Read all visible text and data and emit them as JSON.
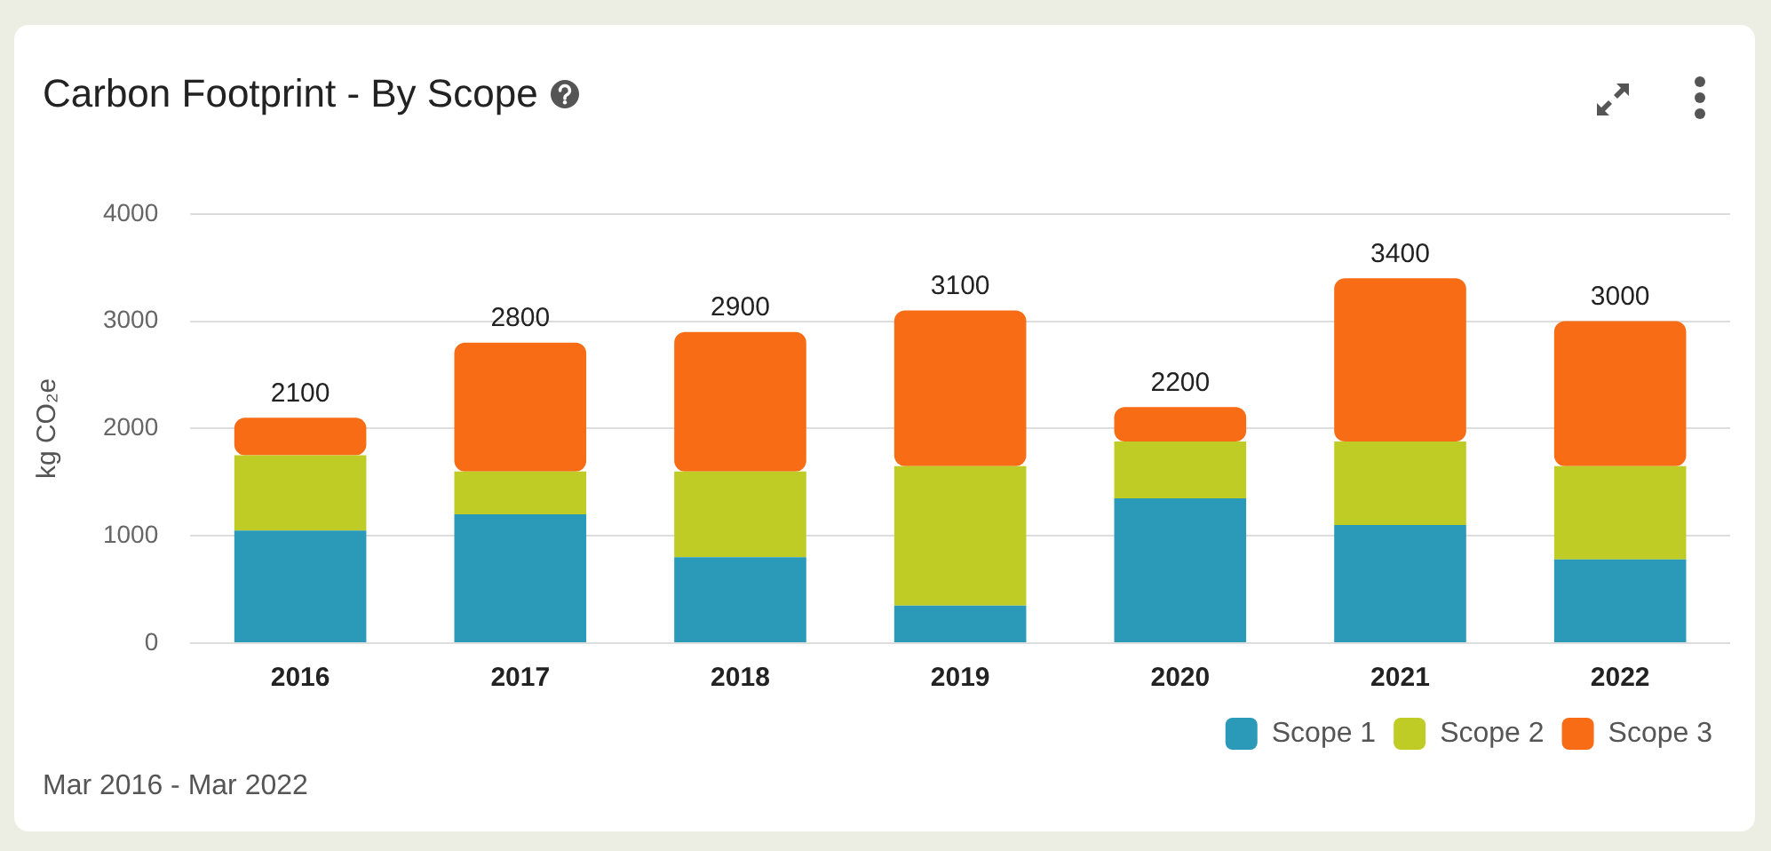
{
  "chart_data": {
    "type": "bar",
    "title": "Carbon Footprint - By Scope",
    "ylabel": "kg CO₂e",
    "categories": [
      "2016",
      "2017",
      "2018",
      "2019",
      "2020",
      "2021",
      "2022"
    ],
    "series": [
      {
        "name": "Scope 1",
        "color": "#2a9ab8",
        "values": [
          1050,
          1200,
          800,
          350,
          1350,
          1100,
          780
        ]
      },
      {
        "name": "Scope 2",
        "color": "#c0cc26",
        "values": [
          700,
          400,
          800,
          1300,
          530,
          780,
          870
        ]
      },
      {
        "name": "Scope 3",
        "color": "#f76c15",
        "values": [
          350,
          1200,
          1300,
          1450,
          320,
          1520,
          1350
        ]
      }
    ],
    "stacked": true,
    "totals": [
      "2100",
      "2800",
      "2900",
      "3100",
      "2200",
      "3400",
      "3000"
    ],
    "ylim": [
      0,
      4000
    ],
    "yticks": [
      0,
      1000,
      2000,
      3000,
      4000
    ],
    "grid": "y",
    "legend": "bottom right",
    "annotations": [
      "Mar 2016 - Mar 2022"
    ]
  }
}
